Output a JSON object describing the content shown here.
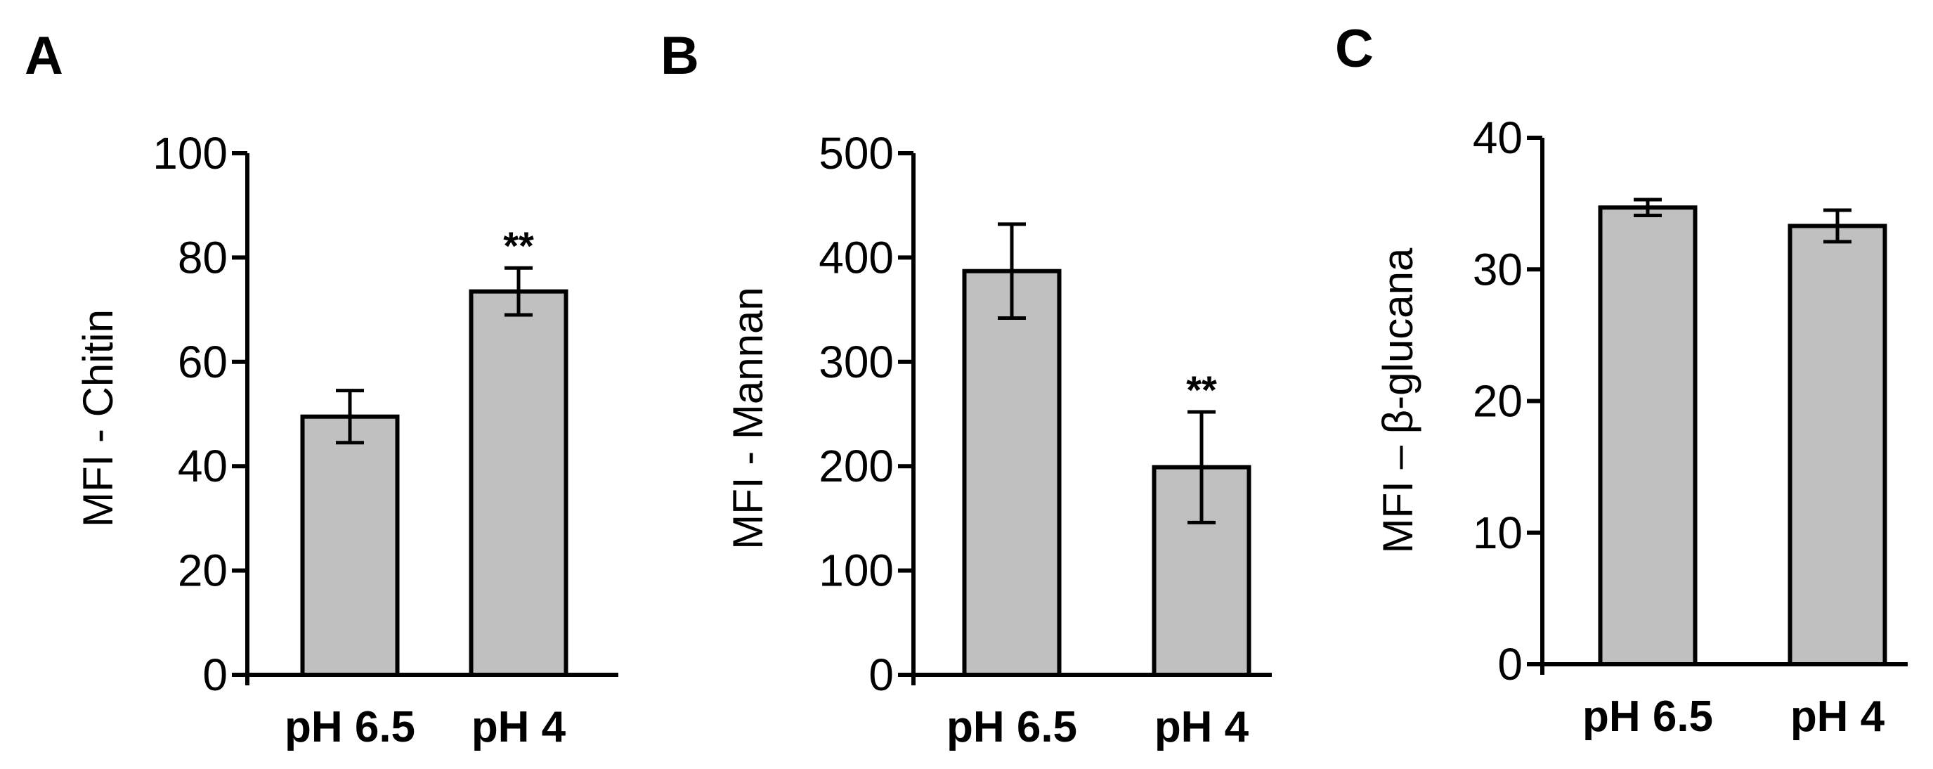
{
  "chart_data": [
    {
      "type": "bar",
      "panel": "A",
      "categories": [
        "pH 6.5",
        "pH 4"
      ],
      "values": [
        49.5,
        73.5
      ],
      "errors": [
        5,
        4.5
      ],
      "annotations": [
        "",
        "**"
      ],
      "ylabel": "MFI - Chitin",
      "ylim": [
        0,
        100
      ],
      "yticks": [
        "0",
        "20",
        "40",
        "60",
        "80",
        "100"
      ],
      "bar_color": "#c0c0c0"
    },
    {
      "type": "bar",
      "panel": "B",
      "categories": [
        "pH 6.5",
        "pH 4"
      ],
      "values": [
        387,
        199
      ],
      "errors": [
        45,
        53
      ],
      "annotations": [
        "",
        "**"
      ],
      "ylabel": "MFI - Mannan",
      "ylim": [
        0,
        500
      ],
      "yticks": [
        "0",
        "100",
        "200",
        "300",
        "400",
        "500"
      ],
      "bar_color": "#c0c0c0"
    },
    {
      "type": "bar",
      "panel": "C",
      "categories": [
        "pH 6.5",
        "pH 4"
      ],
      "values": [
        34.7,
        33.3
      ],
      "errors": [
        0.6,
        1.2
      ],
      "annotations": [
        "",
        ""
      ],
      "ylabel": "MFI – β-glucana",
      "ylim": [
        0,
        40
      ],
      "yticks": [
        "0",
        "10",
        "20",
        "30",
        "40"
      ],
      "bar_color": "#c0c0c0"
    }
  ]
}
